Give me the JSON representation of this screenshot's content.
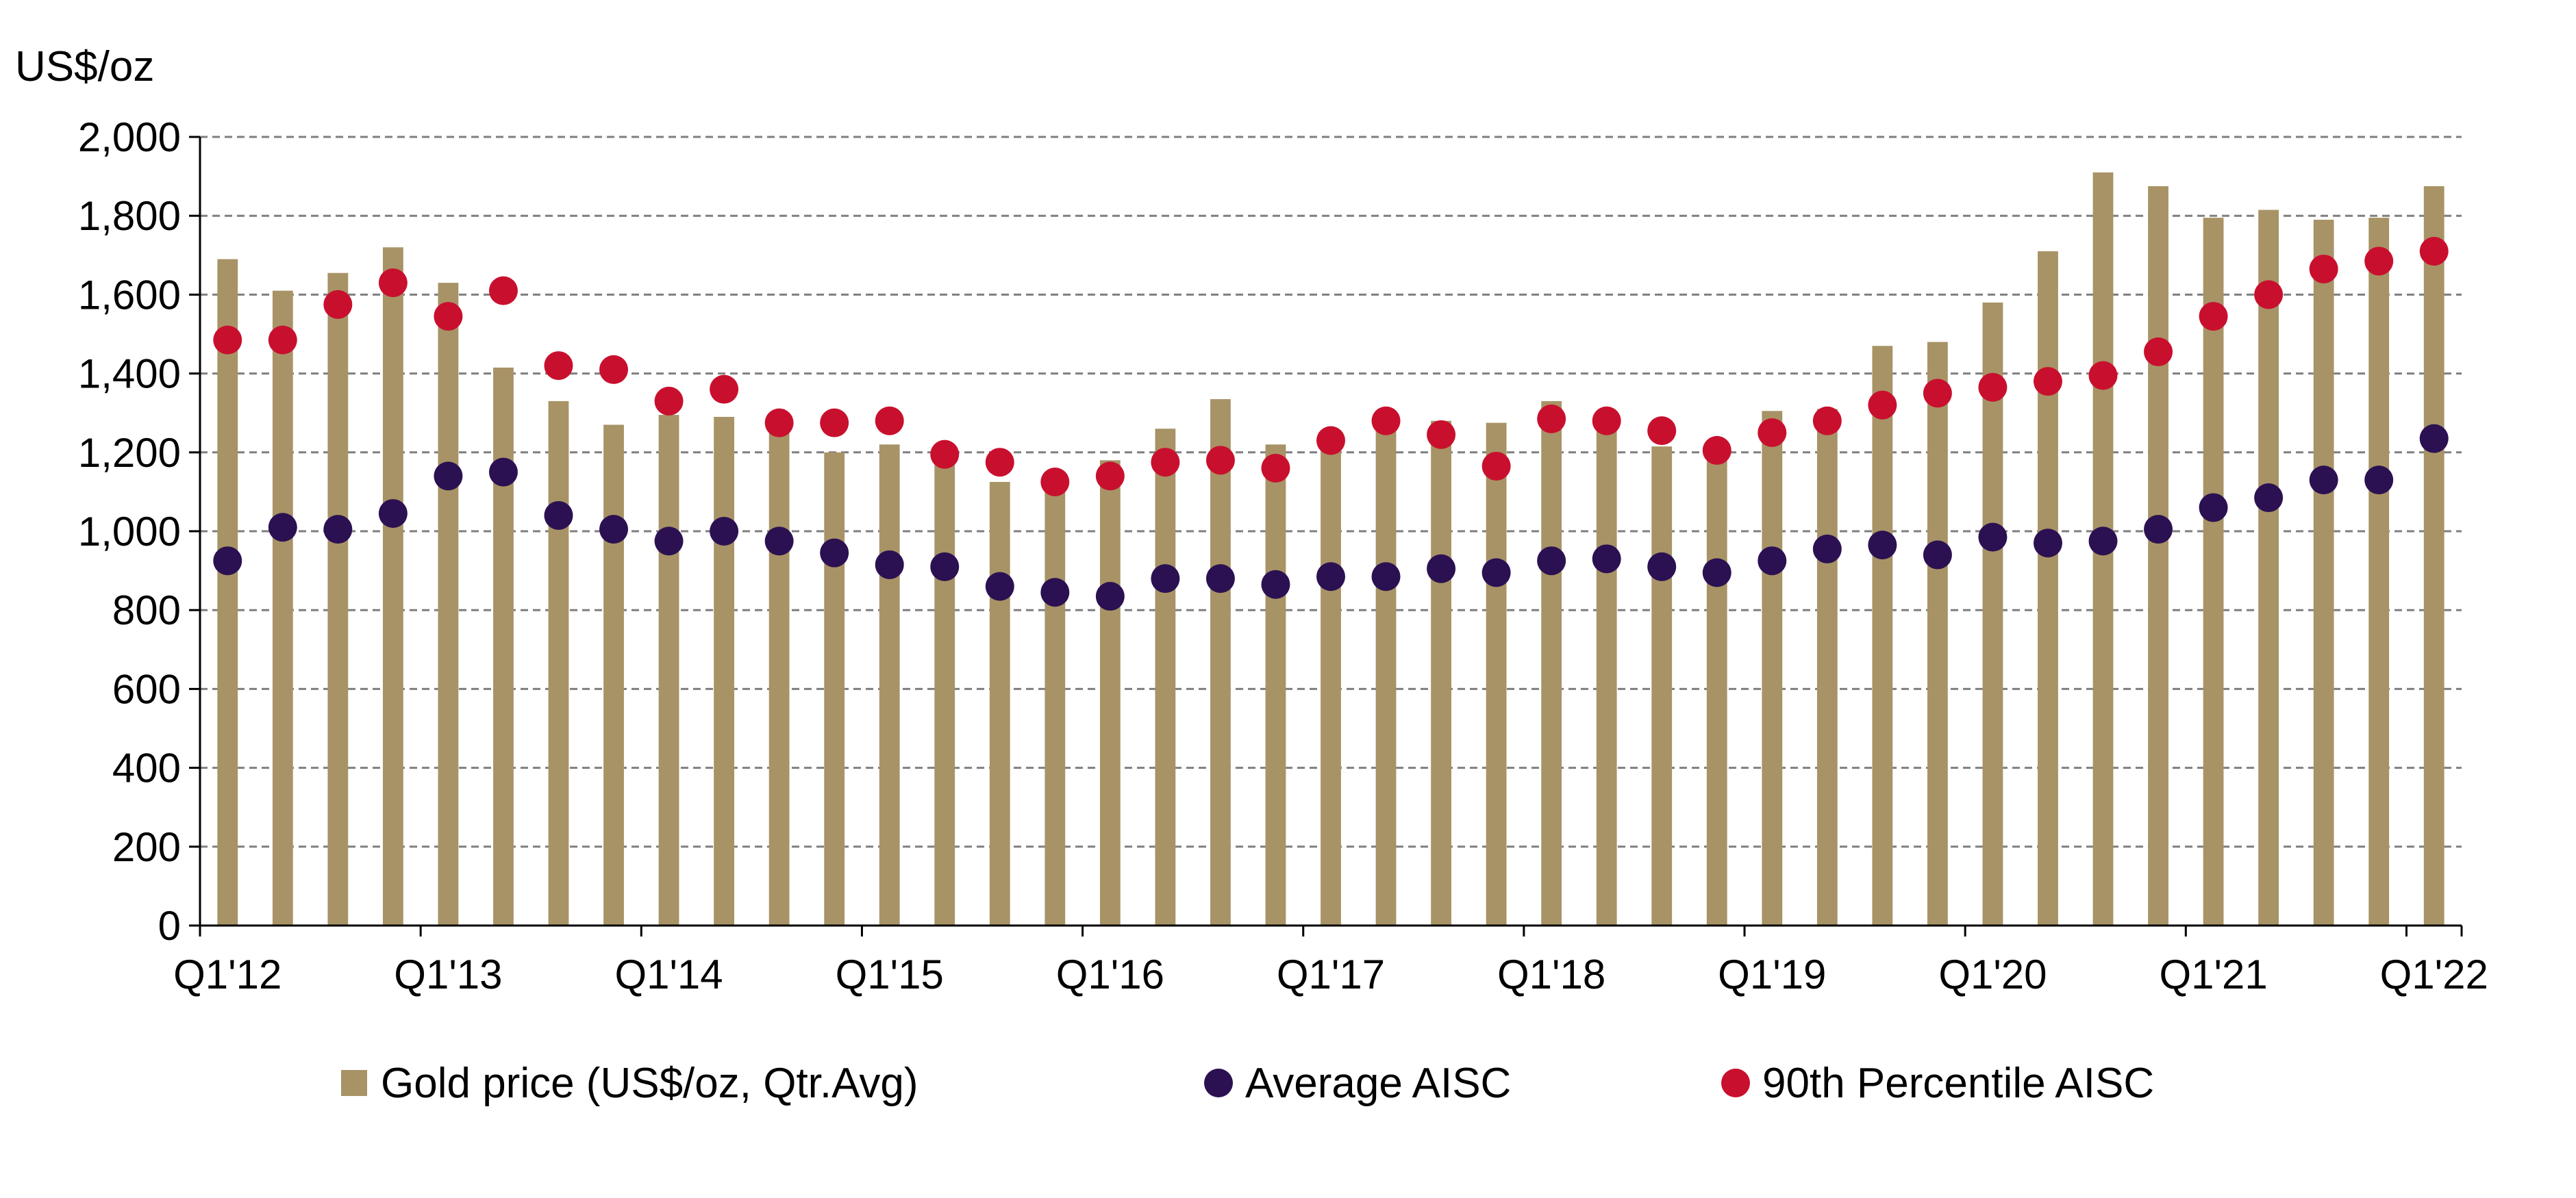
{
  "chart_data": {
    "type": "bar",
    "title": "",
    "ylabel": "US$/oz",
    "xlabel": "",
    "ylim": [
      0,
      2000
    ],
    "yticks": [
      0,
      200,
      400,
      600,
      800,
      1000,
      1200,
      1400,
      1600,
      1800,
      2000
    ],
    "ytick_labels": [
      "0",
      "200",
      "400",
      "600",
      "800",
      "1,000",
      "1,200",
      "1,400",
      "1,600",
      "1,800",
      "2,000"
    ],
    "grid": "horizontal dashed",
    "legend_position": "bottom",
    "categories": [
      "Q1'12",
      "Q2'12",
      "Q3'12",
      "Q4'12",
      "Q1'13",
      "Q2'13",
      "Q3'13",
      "Q4'13",
      "Q1'14",
      "Q2'14",
      "Q3'14",
      "Q4'14",
      "Q1'15",
      "Q2'15",
      "Q3'15",
      "Q4'15",
      "Q1'16",
      "Q2'16",
      "Q3'16",
      "Q4'16",
      "Q1'17",
      "Q2'17",
      "Q3'17",
      "Q4'17",
      "Q1'18",
      "Q2'18",
      "Q3'18",
      "Q4'18",
      "Q1'19",
      "Q2'19",
      "Q3'19",
      "Q4'19",
      "Q1'20",
      "Q2'20",
      "Q3'20",
      "Q4'20",
      "Q1'21",
      "Q2'21",
      "Q3'21",
      "Q4'21",
      "Q1'22"
    ],
    "x_tick_labels": [
      "Q1'12",
      "Q1'13",
      "Q1'14",
      "Q1'15",
      "Q1'16",
      "Q1'17",
      "Q1'18",
      "Q1'19",
      "Q1'20",
      "Q1'21",
      "Q1'22"
    ],
    "series": [
      {
        "name": "Gold price (US$/oz, Qtr.Avg)",
        "kind": "bar",
        "color": "#A89366",
        "values": [
          1690,
          1610,
          1655,
          1720,
          1630,
          1415,
          1330,
          1270,
          1295,
          1290,
          1280,
          1200,
          1220,
          1190,
          1125,
          1105,
          1180,
          1260,
          1335,
          1220,
          1220,
          1255,
          1280,
          1275,
          1330,
          1305,
          1215,
          1225,
          1305,
          1310,
          1470,
          1480,
          1580,
          1710,
          1910,
          1875,
          1795,
          1815,
          1790,
          1795,
          1875
        ]
      },
      {
        "name": "Average AISC",
        "kind": "scatter",
        "color": "#2B1152",
        "values": [
          925,
          1010,
          1005,
          1045,
          1140,
          1150,
          1040,
          1005,
          975,
          1000,
          975,
          945,
          915,
          910,
          860,
          845,
          835,
          880,
          880,
          865,
          885,
          885,
          905,
          895,
          925,
          930,
          910,
          895,
          925,
          955,
          965,
          940,
          985,
          970,
          975,
          1005,
          1060,
          1085,
          1130,
          1130,
          1235
        ]
      },
      {
        "name": "90th Percentile AISC",
        "kind": "scatter",
        "color": "#C8102E",
        "values": [
          1485,
          1485,
          1575,
          1630,
          1545,
          1610,
          1420,
          1410,
          1330,
          1360,
          1275,
          1275,
          1280,
          1195,
          1175,
          1125,
          1140,
          1175,
          1180,
          1160,
          1230,
          1280,
          1245,
          1165,
          1285,
          1280,
          1255,
          1205,
          1250,
          1280,
          1320,
          1350,
          1365,
          1380,
          1395,
          1455,
          1545,
          1600,
          1665,
          1685,
          1710
        ]
      }
    ]
  }
}
